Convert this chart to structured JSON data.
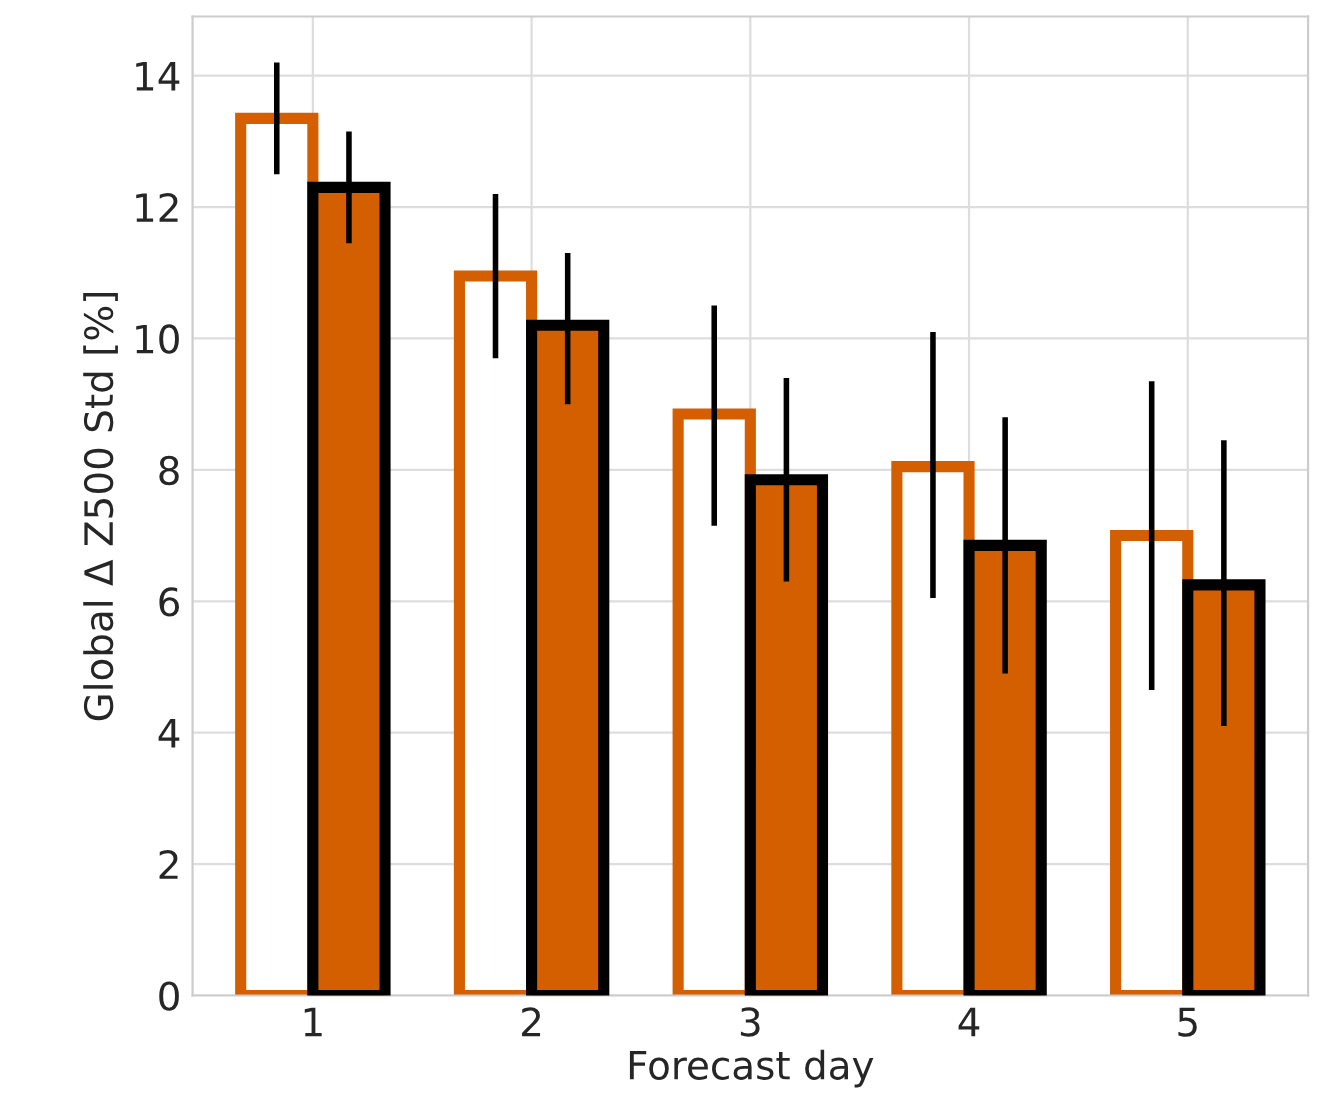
{
  "chart_data": {
    "type": "bar",
    "xlabel": "Forecast day",
    "ylabel": "Global Δ Z500 Std [%]",
    "categories": [
      "1",
      "2",
      "3",
      "4",
      "5"
    ],
    "series": [
      {
        "color": "#ffffff",
        "values": [
          13.35,
          10.95,
          8.85,
          8.05,
          7.0
        ],
        "errors": [
          [
            12.5,
            14.2
          ],
          [
            9.7,
            12.2
          ],
          [
            7.15,
            10.5
          ],
          [
            6.05,
            10.1
          ],
          [
            4.65,
            9.35
          ]
        ]
      },
      {
        "color": "#d35f00",
        "values": [
          12.3,
          10.2,
          7.85,
          6.85,
          6.25
        ],
        "errors": [
          [
            11.45,
            13.15
          ],
          [
            9.0,
            11.3
          ],
          [
            6.3,
            9.4
          ],
          [
            4.9,
            8.8
          ],
          [
            4.1,
            8.45
          ]
        ]
      }
    ],
    "ylim": [
      0,
      14.9
    ],
    "yticks": [
      0,
      2,
      4,
      6,
      8,
      10,
      12,
      14
    ],
    "grid": true
  }
}
